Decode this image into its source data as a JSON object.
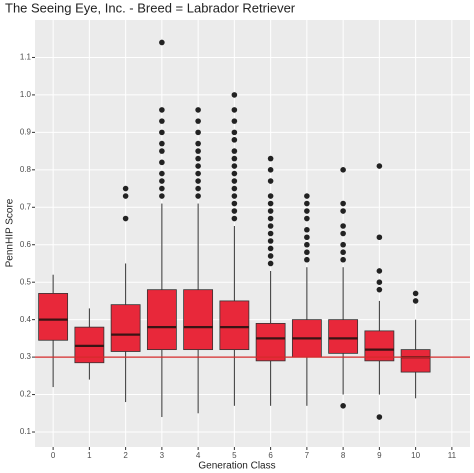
{
  "chart_data": {
    "type": "box",
    "title": "The Seeing Eye, Inc. - Breed = Labrador Retriever",
    "x_label": "Generation Class",
    "y_label": "PennHIP Score",
    "categories": [
      "0",
      "1",
      "2",
      "3",
      "4",
      "5",
      "6",
      "7",
      "8",
      "9",
      "10",
      "11"
    ],
    "boxes": [
      {
        "min": 0.22,
        "q1": 0.345,
        "median": 0.4,
        "q3": 0.47,
        "max": 0.52,
        "outliers": []
      },
      {
        "min": 0.24,
        "q1": 0.285,
        "median": 0.33,
        "q3": 0.38,
        "max": 0.43,
        "outliers": []
      },
      {
        "min": 0.18,
        "q1": 0.315,
        "median": 0.36,
        "q3": 0.44,
        "max": 0.55,
        "outliers": [
          0.67,
          0.73,
          0.75
        ]
      },
      {
        "min": 0.14,
        "q1": 0.32,
        "median": 0.38,
        "q3": 0.48,
        "max": 0.71,
        "outliers": [
          0.73,
          0.75,
          0.77,
          0.79,
          0.82,
          0.85,
          0.87,
          0.9,
          0.93,
          0.96,
          1.14
        ]
      },
      {
        "min": 0.15,
        "q1": 0.32,
        "median": 0.38,
        "q3": 0.48,
        "max": 0.71,
        "outliers": [
          0.73,
          0.75,
          0.77,
          0.79,
          0.81,
          0.83,
          0.85,
          0.87,
          0.9,
          0.93,
          0.96
        ]
      },
      {
        "min": 0.17,
        "q1": 0.32,
        "median": 0.38,
        "q3": 0.45,
        "max": 0.65,
        "outliers": [
          0.67,
          0.69,
          0.71,
          0.73,
          0.75,
          0.77,
          0.79,
          0.81,
          0.83,
          0.85,
          0.88,
          0.9,
          0.93,
          0.96,
          1.0
        ]
      },
      {
        "min": 0.17,
        "q1": 0.29,
        "median": 0.35,
        "q3": 0.39,
        "max": 0.53,
        "outliers": [
          0.55,
          0.57,
          0.59,
          0.61,
          0.63,
          0.65,
          0.67,
          0.69,
          0.71,
          0.73,
          0.77,
          0.8,
          0.83
        ]
      },
      {
        "min": 0.17,
        "q1": 0.3,
        "median": 0.35,
        "q3": 0.4,
        "max": 0.54,
        "outliers": [
          0.56,
          0.58,
          0.6,
          0.62,
          0.64,
          0.67,
          0.69,
          0.71,
          0.73
        ]
      },
      {
        "min": 0.2,
        "q1": 0.31,
        "median": 0.35,
        "q3": 0.4,
        "max": 0.54,
        "outliers": [
          0.17,
          0.56,
          0.58,
          0.6,
          0.63,
          0.65,
          0.69,
          0.71,
          0.8
        ]
      },
      {
        "min": 0.2,
        "q1": 0.29,
        "median": 0.32,
        "q3": 0.37,
        "max": 0.45,
        "outliers": [
          0.14,
          0.48,
          0.5,
          0.53,
          0.62,
          0.81
        ]
      },
      {
        "min": 0.19,
        "q1": 0.26,
        "median": 0.3,
        "q3": 0.32,
        "max": 0.4,
        "outliers": [
          0.45,
          0.47
        ]
      },
      null
    ],
    "color": "#e8283a",
    "reference_line": 0.3,
    "reference_color": "#d42a2a",
    "ylim": [
      0.06,
      1.2
    ],
    "yticks": [
      0.1,
      0.2,
      0.3,
      0.4,
      0.5,
      0.6,
      0.7,
      0.8,
      0.9,
      {
        "value": 1,
        "label": "1.0"
      },
      1.1
    ],
    "grid": true
  }
}
